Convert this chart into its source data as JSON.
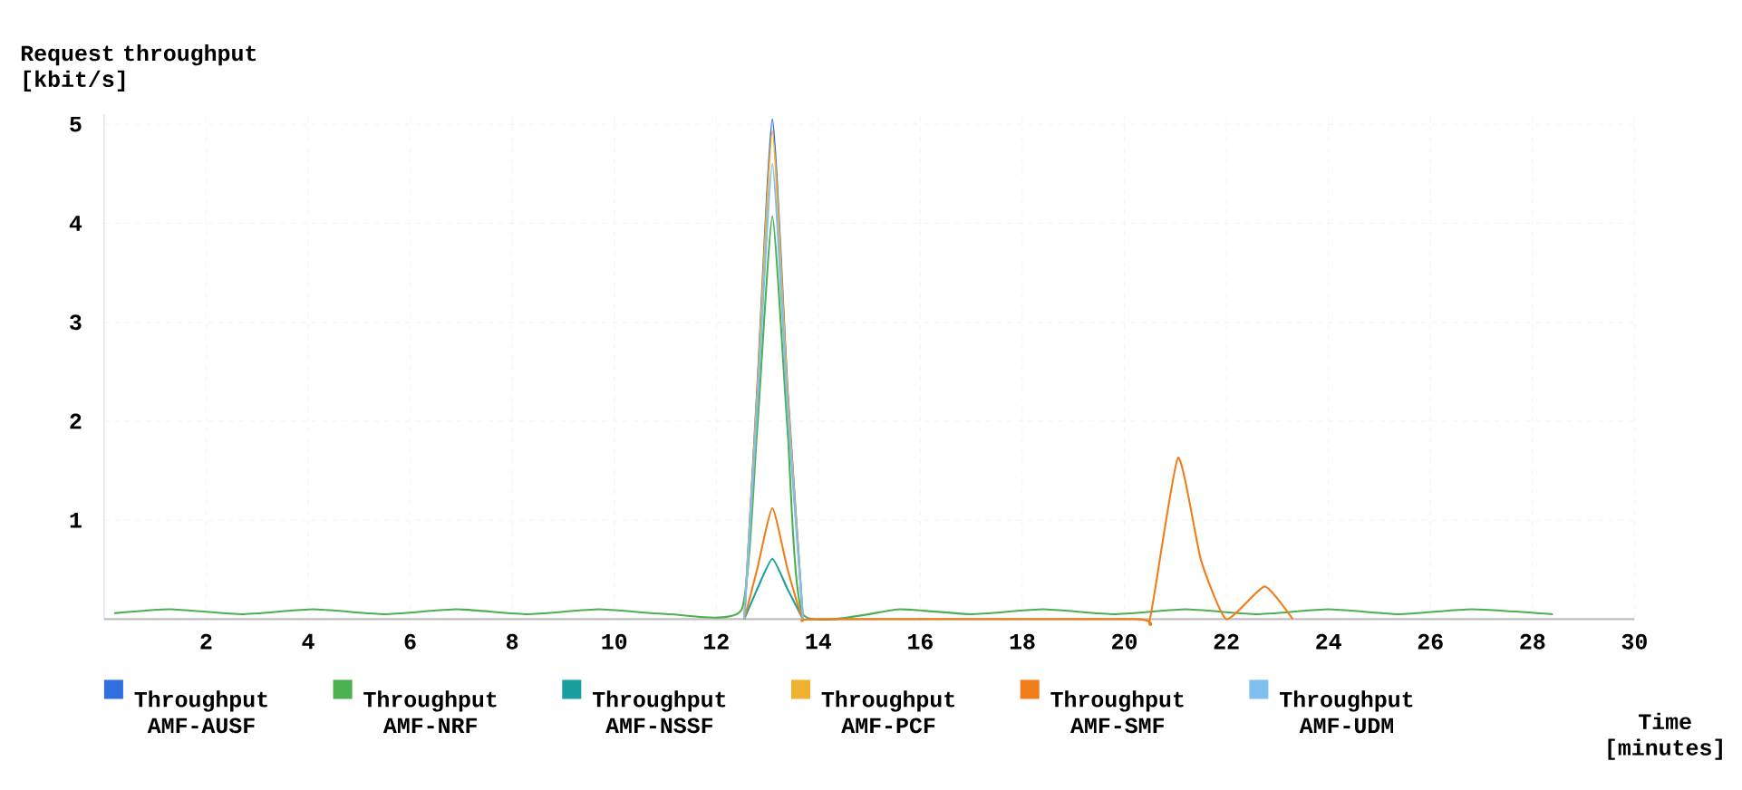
{
  "chart_data": {
    "type": "line",
    "ylabel": "Request throughput [kbit/s]",
    "xlabel": "Time [minutes]",
    "xlim": [
      0,
      30
    ],
    "ylim": [
      0,
      5.1
    ],
    "xticks": [
      2,
      4,
      6,
      8,
      10,
      12,
      14,
      16,
      18,
      20,
      22,
      24,
      26,
      28,
      30
    ],
    "yticks": [
      1,
      2,
      3,
      4,
      5
    ],
    "grid": true,
    "legend": "bottom",
    "series": [
      {
        "name": "Throughput AMF-AUSF",
        "color": "#2f6fe0",
        "x": [
          12.55,
          12.8,
          13.1,
          13.4,
          13.7
        ],
        "values": [
          0,
          2.3,
          5.05,
          2.3,
          0
        ]
      },
      {
        "name": "Throughput AMF-NRF",
        "color": "#4caf50",
        "x": [
          0.2,
          1.3,
          2.7,
          4.1,
          5.5,
          6.9,
          8.3,
          9.7,
          11.1,
          12.5,
          12.8,
          13.1,
          13.4,
          13.7,
          15.6,
          17.0,
          18.4,
          19.8,
          21.2,
          22.6,
          24.0,
          25.4,
          26.8,
          28.4
        ],
        "values": [
          0.06,
          0.1,
          0.05,
          0.1,
          0.05,
          0.1,
          0.05,
          0.1,
          0.05,
          0.1,
          1.9,
          4.07,
          1.9,
          0.05,
          0.1,
          0.05,
          0.1,
          0.05,
          0.1,
          0.05,
          0.1,
          0.05,
          0.1,
          0.05
        ]
      },
      {
        "name": "Throughput AMF-NSSF",
        "color": "#1a9e9e",
        "x": [
          12.55,
          12.8,
          13.1,
          13.4,
          13.7
        ],
        "values": [
          0,
          0.3,
          0.61,
          0.3,
          0
        ]
      },
      {
        "name": "Throughput AMF-PCF",
        "color": "#f0b030",
        "x": [
          12.55,
          12.8,
          13.1,
          13.4,
          13.7
        ],
        "values": [
          0,
          2.25,
          4.93,
          2.25,
          0
        ]
      },
      {
        "name": "Throughput AMF-SMF",
        "color": "#f07d1a",
        "x": [
          12.55,
          12.8,
          13.1,
          13.4,
          13.7,
          14.0,
          20.2,
          20.5,
          21.05,
          21.5,
          22.0,
          22.75,
          23.3
        ],
        "values": [
          0,
          0.5,
          1.12,
          0.5,
          0,
          0,
          0,
          0,
          1.63,
          0.6,
          0,
          0.33,
          0
        ]
      },
      {
        "name": "Throughput AMF-UDM",
        "color": "#7fbfef",
        "x": [
          12.55,
          12.8,
          13.1,
          13.4,
          13.7
        ],
        "values": [
          0,
          2.1,
          4.6,
          2.1,
          0
        ]
      }
    ]
  }
}
